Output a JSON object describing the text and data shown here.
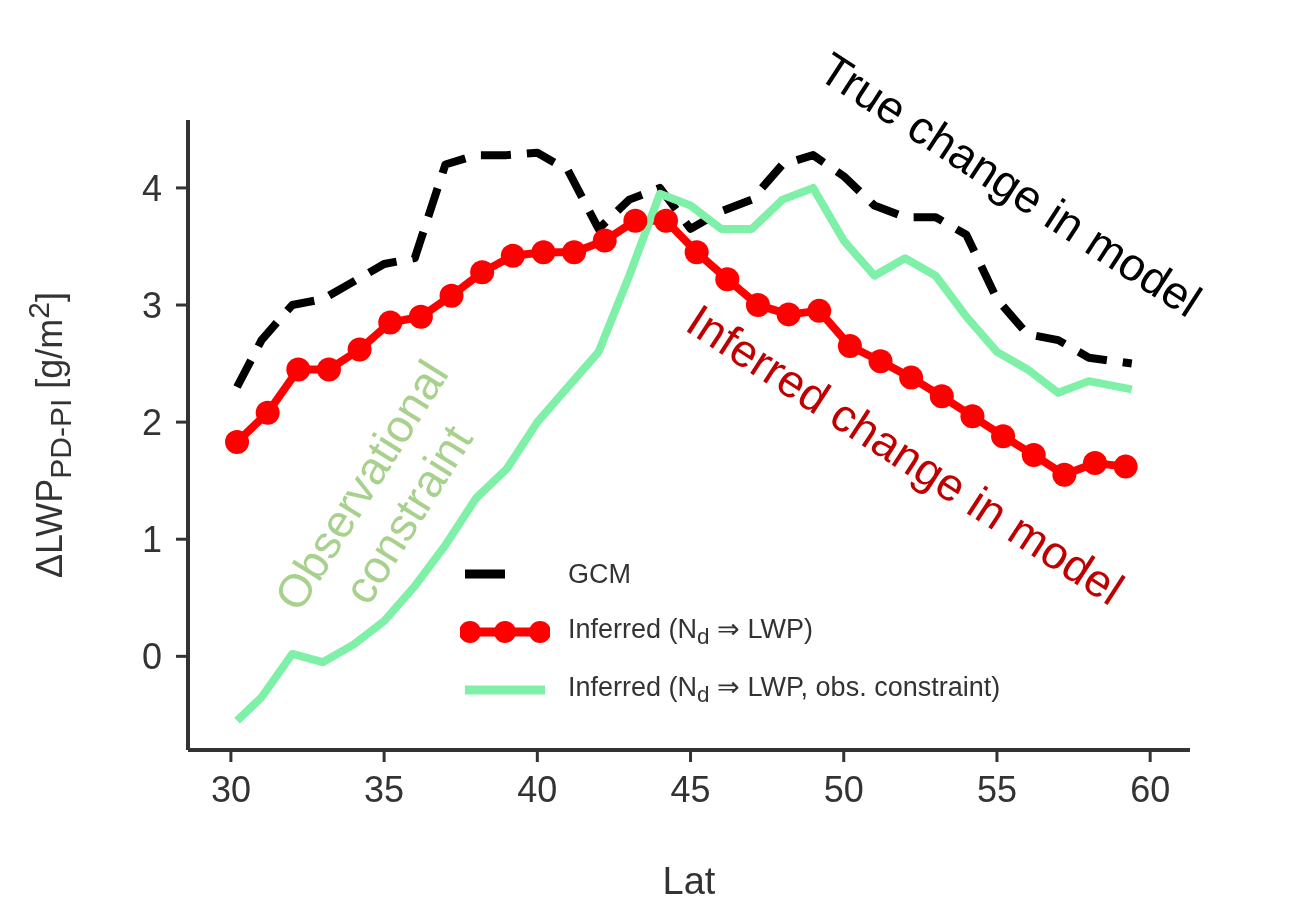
{
  "chart_data": {
    "type": "line",
    "xlabel": "Lat",
    "ylabel": "ΔLWP$_{PD-PI}$ [g/m$^{2}$]",
    "xlim": [
      28.6,
      61.3
    ],
    "xticks": [
      30,
      35,
      40,
      45,
      50,
      55,
      60
    ],
    "ylim": [
      -0.8,
      4.58
    ],
    "yticks": [
      0,
      1,
      2,
      3,
      4
    ],
    "grid": false,
    "legend": "bottom right",
    "series": [
      {
        "name": "GCM",
        "color": "#000000",
        "line_style": "dashed",
        "marker": "none",
        "x": [
          30.2,
          31,
          32,
          33,
          34,
          35,
          36,
          37,
          38,
          39,
          40,
          41,
          42,
          43,
          44,
          45,
          46,
          47,
          48,
          49,
          50,
          51,
          52,
          53,
          54,
          55,
          56,
          57,
          58,
          59.4
        ],
        "values": [
          2.3,
          2.7,
          3.0,
          3.05,
          3.2,
          3.35,
          3.4,
          4.2,
          4.28,
          4.28,
          4.3,
          4.15,
          3.65,
          3.9,
          4.0,
          3.65,
          3.8,
          3.9,
          4.2,
          4.28,
          4.1,
          3.85,
          3.75,
          3.75,
          3.6,
          3.05,
          2.75,
          2.7,
          2.55,
          2.5
        ]
      },
      {
        "name": "Inferred (N$_{d}$ ⇒ LWP)",
        "color": "#ff0000",
        "line_style": "solid",
        "marker": "circle",
        "x": [
          30.2,
          31.2,
          32.2,
          33.2,
          34.2,
          35.2,
          36.2,
          37.2,
          38.2,
          39.2,
          40.2,
          41.2,
          42.2,
          43.2,
          44.2,
          45.2,
          46.2,
          47.2,
          48.2,
          49.2,
          50.2,
          51.2,
          52.2,
          53.2,
          54.2,
          55.2,
          56.2,
          57.2,
          58.2,
          59.2
        ],
        "values": [
          1.83,
          2.08,
          2.45,
          2.45,
          2.62,
          2.85,
          2.9,
          3.08,
          3.28,
          3.42,
          3.45,
          3.45,
          3.55,
          3.72,
          3.72,
          3.45,
          3.22,
          3.0,
          2.92,
          2.95,
          2.65,
          2.52,
          2.38,
          2.22,
          2.05,
          1.88,
          1.72,
          1.55,
          1.65,
          1.62
        ]
      },
      {
        "name": "Inferred (N$_{d}$ ⇒ LWP, obs. constraint)",
        "color": "#7ff0a8",
        "line_style": "solid",
        "marker": "none",
        "x": [
          30.2,
          31,
          32,
          33,
          34,
          35,
          36,
          37,
          38,
          39,
          40,
          41,
          42,
          43,
          44,
          45,
          46,
          47,
          48,
          49,
          50,
          51,
          52,
          53,
          54,
          55,
          56,
          57,
          58,
          59.4
        ],
        "values": [
          -0.55,
          -0.35,
          0.02,
          -0.05,
          0.1,
          0.3,
          0.6,
          0.95,
          1.35,
          1.6,
          2.0,
          2.3,
          2.6,
          3.25,
          3.95,
          3.85,
          3.65,
          3.65,
          3.9,
          4.0,
          3.55,
          3.25,
          3.4,
          3.25,
          2.9,
          2.6,
          2.45,
          2.25,
          2.35,
          2.28
        ]
      }
    ],
    "annotations": [
      "True change in model",
      "Inferred change in model",
      "Observational constraint"
    ]
  }
}
